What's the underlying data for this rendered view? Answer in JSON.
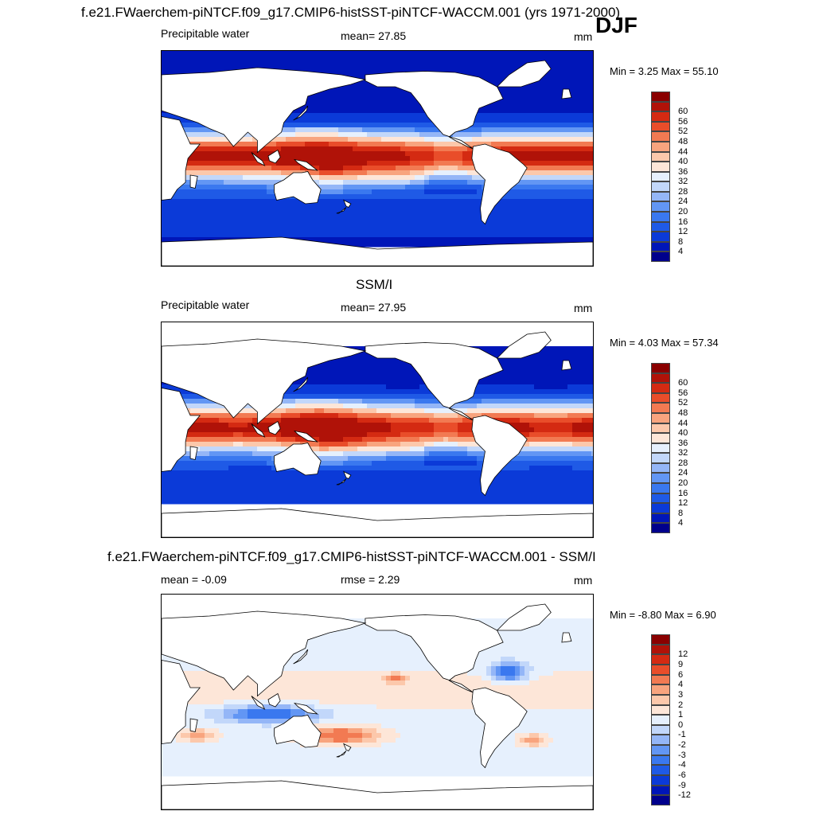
{
  "header": {
    "title": "f.e21.FWaerchem-piNTCF.f09_g17.CMIP6-histSST-piNTCF-WACCM.001 (yrs 1971-2000)",
    "season": "DJF"
  },
  "colors": {
    "abs_palette": [
      "#00008c",
      "#0016b8",
      "#0b3ad8",
      "#1f5ae6",
      "#3a78ef",
      "#6296f4",
      "#94b6f7",
      "#c2d7fa",
      "#e6f0fd",
      "#fde6d8",
      "#fcc8ab",
      "#f8a47e",
      "#f27a52",
      "#e94d2a",
      "#d42a12",
      "#b01208",
      "#8a0000"
    ],
    "diff_palette": [
      "#00008c",
      "#0016b8",
      "#0b3ad8",
      "#1f5ae6",
      "#3a78ef",
      "#6296f4",
      "#94b6f7",
      "#c2d7fa",
      "#e6f0fd",
      "#fde6d8",
      "#fcc8ab",
      "#f8a47e",
      "#f27a52",
      "#e94d2a",
      "#d42a12",
      "#b01208",
      "#8a0000"
    ]
  },
  "chart_data": [
    {
      "type": "heatmap",
      "title": "",
      "left_label": "Precipitable water",
      "mean_label": "mean=  27.85",
      "units": "mm",
      "minmax": "Min =   3.25 Max =  55.10",
      "colorbar_levels": [
        "4",
        "8",
        "12",
        "16",
        "20",
        "24",
        "28",
        "32",
        "36",
        "40",
        "44",
        "48",
        "52",
        "56",
        "60"
      ]
    },
    {
      "type": "heatmap",
      "title": "SSM/I",
      "left_label": "Precipitable water",
      "mean_label": "mean=  27.95",
      "units": "mm",
      "minmax": "Min =   4.03 Max =  57.34",
      "colorbar_levels": [
        "4",
        "8",
        "12",
        "16",
        "20",
        "24",
        "28",
        "32",
        "36",
        "40",
        "44",
        "48",
        "52",
        "56",
        "60"
      ]
    },
    {
      "type": "heatmap",
      "title": "f.e21.FWaerchem-piNTCF.f09_g17.CMIP6-histSST-piNTCF-WACCM.001 - SSM/I",
      "left_label": "mean =  -0.09",
      "mean_label": "rmse =   2.29",
      "units": "mm",
      "minmax": "Min =  -8.80 Max =   6.90",
      "colorbar_levels": [
        "-12",
        "-9",
        "-6",
        "-4",
        "-3",
        "-2",
        "-1",
        "0",
        "1",
        "2",
        "3",
        "4",
        "6",
        "9",
        "12"
      ]
    }
  ]
}
